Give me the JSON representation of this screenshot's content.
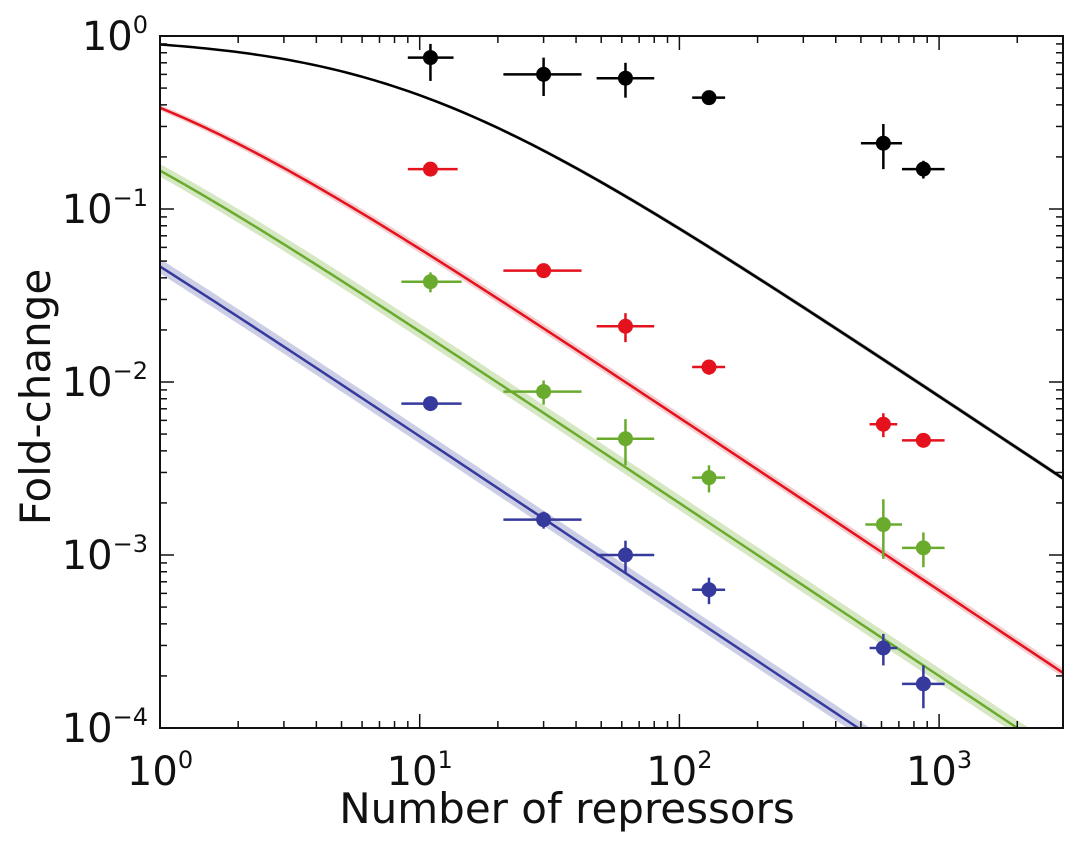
{
  "chart_data": {
    "type": "scatter",
    "title": "",
    "xlabel": "Number of repressors",
    "ylabel": "Fold-change",
    "x_scale": "log",
    "y_scale": "log",
    "xlim": [
      1,
      3000
    ],
    "ylim": [
      0.0001,
      1
    ],
    "grid": false,
    "legend": "none",
    "x_ticks": [
      {
        "value": 1,
        "base": "10",
        "exp": "0"
      },
      {
        "value": 10,
        "base": "10",
        "exp": "1"
      },
      {
        "value": 100,
        "base": "10",
        "exp": "2"
      },
      {
        "value": 1000,
        "base": "10",
        "exp": "3"
      }
    ],
    "y_ticks": [
      {
        "value": 1,
        "base": "10",
        "exp": "0"
      },
      {
        "value": 0.1,
        "base": "10",
        "exp": "−1"
      },
      {
        "value": 0.01,
        "base": "10",
        "exp": "−2"
      },
      {
        "value": 0.001,
        "base": "10",
        "exp": "−3"
      },
      {
        "value": 0.0001,
        "base": "10",
        "exp": "−4"
      }
    ],
    "series": [
      {
        "color": "#000000",
        "band_color": "#9a9a9a",
        "theory": {
          "k": 0.12,
          "delta": 0.03
        },
        "points": [
          {
            "x": 11,
            "y": 0.75,
            "xerr": [
              9,
              13.5
            ],
            "yerr": [
              0.55,
              0.9
            ]
          },
          {
            "x": 30,
            "y": 0.6,
            "xerr": [
              21,
              42
            ],
            "yerr": [
              0.45,
              0.75
            ]
          },
          {
            "x": 62,
            "y": 0.57,
            "xerr": [
              48,
              80
            ],
            "yerr": [
              0.44,
              0.7
            ]
          },
          {
            "x": 130,
            "y": 0.44,
            "xerr": [
              112,
              150
            ],
            "yerr": [
              0.4,
              0.48
            ]
          },
          {
            "x": 610,
            "y": 0.24,
            "xerr": [
              500,
              720
            ],
            "yerr": [
              0.17,
              0.31
            ]
          },
          {
            "x": 870,
            "y": 0.17,
            "xerr": [
              720,
              1050
            ],
            "yerr": [
              0.15,
              0.19
            ]
          }
        ]
      },
      {
        "color": "#e3121d",
        "band_color": "#f3c4c7",
        "theory": {
          "k": 1.6,
          "delta": 0.06
        },
        "points": [
          {
            "x": 11,
            "y": 0.17,
            "xerr": [
              9,
              14
            ],
            "yerr": [
              0.155,
              0.185
            ]
          },
          {
            "x": 30,
            "y": 0.044,
            "xerr": [
              21,
              42
            ],
            "yerr": [
              0.04,
              0.048
            ]
          },
          {
            "x": 62,
            "y": 0.021,
            "xerr": [
              48,
              80
            ],
            "yerr": [
              0.017,
              0.025
            ]
          },
          {
            "x": 130,
            "y": 0.0122,
            "xerr": [
              112,
              150
            ],
            "yerr": [
              0.011,
              0.0134
            ]
          },
          {
            "x": 610,
            "y": 0.0057,
            "xerr": [
              540,
              690
            ],
            "yerr": [
              0.0048,
              0.0066
            ]
          },
          {
            "x": 870,
            "y": 0.0046,
            "xerr": [
              720,
              1050
            ],
            "yerr": [
              0.0043,
              0.0049
            ]
          }
        ]
      },
      {
        "color": "#6aab2e",
        "band_color": "#cfe3b8",
        "theory": {
          "k": 5.0,
          "delta": 0.1
        },
        "points": [
          {
            "x": 11,
            "y": 0.038,
            "xerr": [
              8.5,
              14.5
            ],
            "yerr": [
              0.033,
              0.043
            ]
          },
          {
            "x": 30,
            "y": 0.0088,
            "xerr": [
              21,
              42
            ],
            "yerr": [
              0.0074,
              0.0102
            ]
          },
          {
            "x": 62,
            "y": 0.0047,
            "xerr": [
              48,
              80
            ],
            "yerr": [
              0.0033,
              0.0061
            ]
          },
          {
            "x": 130,
            "y": 0.0028,
            "xerr": [
              112,
              150
            ],
            "yerr": [
              0.0023,
              0.0033
            ]
          },
          {
            "x": 610,
            "y": 0.0015,
            "xerr": [
              520,
              720
            ],
            "yerr": [
              0.00095,
              0.0021
            ]
          },
          {
            "x": 870,
            "y": 0.0011,
            "xerr": [
              720,
              1050
            ],
            "yerr": [
              0.00085,
              0.00135
            ]
          }
        ]
      },
      {
        "color": "#353a9c",
        "band_color": "#c3c6e0",
        "theory": {
          "k": 20.5,
          "delta": 0.1
        },
        "points": [
          {
            "x": 11,
            "y": 0.0075,
            "xerr": [
              8.5,
              14.5
            ],
            "yerr": [
              0.0069,
              0.0081
            ]
          },
          {
            "x": 30,
            "y": 0.0016,
            "xerr": [
              21,
              42
            ],
            "yerr": [
              0.00142,
              0.00178
            ]
          },
          {
            "x": 62,
            "y": 0.001,
            "xerr": [
              48,
              80
            ],
            "yerr": [
              0.00079,
              0.00121
            ]
          },
          {
            "x": 130,
            "y": 0.00063,
            "xerr": [
              112,
              150
            ],
            "yerr": [
              0.00052,
              0.00074
            ]
          },
          {
            "x": 610,
            "y": 0.00029,
            "xerr": [
              540,
              690
            ],
            "yerr": [
              0.00023,
              0.00035
            ]
          },
          {
            "x": 870,
            "y": 0.00018,
            "xerr": [
              720,
              1050
            ],
            "yerr": [
              0.00013,
              0.00023
            ]
          }
        ]
      }
    ]
  }
}
